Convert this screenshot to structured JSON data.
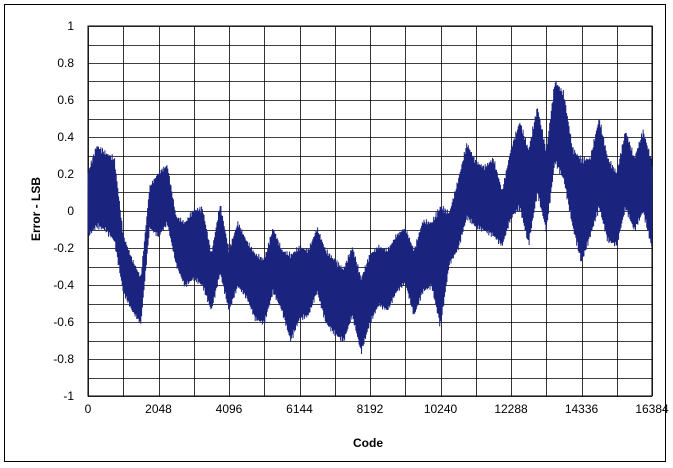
{
  "colors": {
    "series": "#1a237e",
    "grid": "#000000",
    "background": "#ffffff"
  },
  "chart_data": {
    "type": "line",
    "title": "",
    "xlabel": "Code",
    "ylabel": "Error - LSB",
    "xlim": [
      0,
      16384
    ],
    "ylim": [
      -1,
      1
    ],
    "x_ticks": [
      0,
      2048,
      4096,
      6144,
      8192,
      10240,
      12288,
      14336,
      16384
    ],
    "x_tick_labels": [
      "0",
      "2048",
      "4096",
      "6144",
      "8192",
      "10240",
      "12288",
      "14336",
      "16384"
    ],
    "y_ticks": [
      -1,
      -0.8,
      -0.6,
      -0.4,
      -0.2,
      0,
      0.2,
      0.4,
      0.6,
      0.8,
      1
    ],
    "y_tick_labels": [
      "-1",
      "-0.8",
      "-0.6",
      "-0.4",
      "-0.2",
      "0",
      "0.2",
      "0.4",
      "0.6",
      "0.8",
      "1"
    ],
    "grid": true,
    "legend": "none",
    "series": [
      {
        "x": [
          0,
          256,
          512,
          768,
          1024,
          1280,
          1536,
          1792,
          2048,
          2304,
          2560,
          2816,
          3072,
          3328,
          3584,
          3840,
          4096,
          4352,
          4608,
          4864,
          5120,
          5376,
          5632,
          5888,
          6144,
          6400,
          6656,
          6912,
          7168,
          7424,
          7680,
          7936,
          8192,
          8448,
          8704,
          8960,
          9216,
          9472,
          9728,
          9984,
          10240,
          10496,
          10752,
          11008,
          11264,
          11520,
          11776,
          12032,
          12288,
          12544,
          12800,
          13056,
          13312,
          13568,
          13824,
          14080,
          14336,
          14592,
          14848,
          15104,
          15360,
          15616,
          15872,
          16128,
          16384
        ],
        "y_max": [
          0.22,
          0.37,
          0.33,
          0.3,
          -0.12,
          -0.25,
          -0.35,
          0.14,
          0.22,
          0.26,
          -0.02,
          -0.05,
          0.02,
          0.03,
          -0.22,
          0.05,
          -0.2,
          -0.05,
          -0.15,
          -0.22,
          -0.25,
          -0.08,
          -0.2,
          -0.22,
          -0.18,
          -0.2,
          -0.08,
          -0.2,
          -0.25,
          -0.3,
          -0.18,
          -0.35,
          -0.22,
          -0.18,
          -0.2,
          -0.12,
          -0.08,
          -0.2,
          -0.04,
          -0.05,
          0.05,
          0.0,
          0.18,
          0.38,
          0.28,
          0.25,
          0.3,
          0.12,
          0.35,
          0.5,
          0.35,
          0.58,
          0.34,
          0.72,
          0.65,
          0.35,
          0.3,
          0.3,
          0.52,
          0.3,
          0.22,
          0.45,
          0.3,
          0.45,
          0.28
        ],
        "y_min": [
          -0.15,
          -0.1,
          -0.12,
          -0.18,
          -0.45,
          -0.55,
          -0.62,
          -0.1,
          -0.15,
          -0.08,
          -0.3,
          -0.42,
          -0.38,
          -0.42,
          -0.55,
          -0.35,
          -0.55,
          -0.42,
          -0.48,
          -0.6,
          -0.62,
          -0.45,
          -0.55,
          -0.72,
          -0.6,
          -0.58,
          -0.45,
          -0.62,
          -0.68,
          -0.72,
          -0.58,
          -0.78,
          -0.62,
          -0.52,
          -0.55,
          -0.45,
          -0.4,
          -0.58,
          -0.45,
          -0.42,
          -0.65,
          -0.3,
          -0.22,
          -0.05,
          -0.1,
          -0.12,
          -0.15,
          -0.2,
          -0.05,
          0.0,
          -0.2,
          0.08,
          -0.12,
          0.25,
          0.15,
          -0.1,
          -0.3,
          -0.15,
          0.0,
          -0.18,
          -0.2,
          0.0,
          -0.12,
          -0.02,
          -0.22
        ]
      }
    ]
  }
}
